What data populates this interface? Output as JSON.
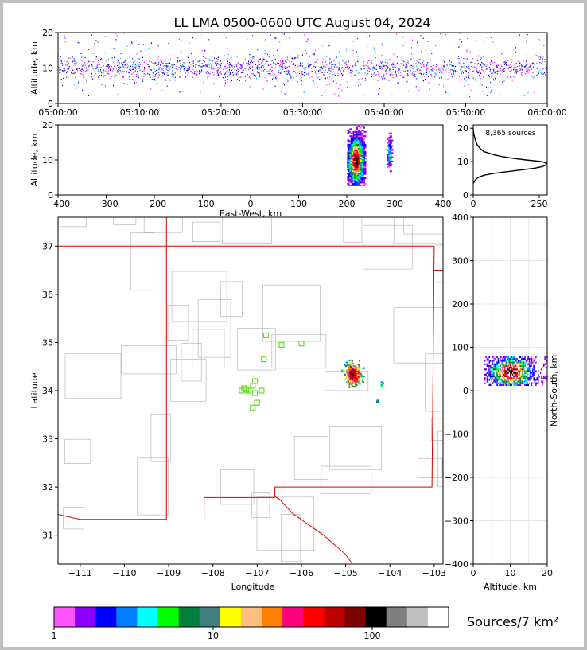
{
  "chart_data": [
    {
      "type": "scatter",
      "panel": "altitude-vs-time",
      "title": "LL LMA 0500-0600 UTC August 04, 2024",
      "xlabel": "",
      "ylabel": "Altitude, km",
      "xticks": [
        "05:00:00",
        "05:10:00",
        "05:20:00",
        "05:30:00",
        "05:40:00",
        "05:50:00",
        "06:00:00"
      ],
      "xlim_minutes": [
        0,
        60
      ],
      "ylim": [
        0,
        20
      ],
      "yticks": [
        0,
        10,
        20
      ],
      "dominant_altitude_band_km": [
        6,
        14
      ],
      "sparse_altitude_band_km": [
        2,
        20
      ]
    },
    {
      "type": "heatmap",
      "panel": "altitude-vs-east-west",
      "xlabel": "East-West, km",
      "ylabel": "Altitude, km",
      "xlim": [
        -400,
        400
      ],
      "xticks": [
        -400,
        -300,
        -200,
        -100,
        0,
        100,
        200,
        300,
        400
      ],
      "ylim": [
        0,
        20
      ],
      "yticks": [
        0,
        10,
        20
      ],
      "clusters": [
        {
          "x_center_km": 218,
          "x_width_km": 35,
          "alt_range_km": [
            3,
            20
          ],
          "peak_alt_km": 10
        },
        {
          "x_center_km": 288,
          "x_width_km": 8,
          "alt_range_km": [
            7,
            18
          ],
          "peak_alt_km": 12
        }
      ]
    },
    {
      "type": "line",
      "panel": "altitude-histogram",
      "annotation": "8,365 sources",
      "xlim": [
        0,
        280
      ],
      "xticks": [
        0,
        250
      ],
      "ylim": [
        0,
        21
      ],
      "yticks": [
        0,
        10,
        20
      ],
      "counts": [
        [
          0,
          3.5
        ],
        [
          8,
          4.5
        ],
        [
          15,
          5
        ],
        [
          25,
          5.5
        ],
        [
          45,
          6
        ],
        [
          80,
          6.5
        ],
        [
          130,
          7
        ],
        [
          180,
          7.5
        ],
        [
          230,
          8
        ],
        [
          260,
          8.5
        ],
        [
          275,
          9
        ],
        [
          278,
          9.5
        ],
        [
          260,
          10
        ],
        [
          200,
          10.5
        ],
        [
          150,
          11
        ],
        [
          110,
          11.5
        ],
        [
          80,
          12
        ],
        [
          60,
          12.5
        ],
        [
          40,
          13
        ],
        [
          25,
          14
        ],
        [
          15,
          15
        ],
        [
          10,
          16
        ],
        [
          6,
          17
        ],
        [
          3,
          18
        ],
        [
          1,
          19
        ],
        [
          0,
          20
        ]
      ]
    },
    {
      "type": "heatmap",
      "panel": "plan-view-map",
      "xlabel": "Longitude",
      "ylabel": "Latitude",
      "xlim": [
        -111.5,
        -102.8
      ],
      "xticks": [
        -111,
        -110,
        -109,
        -108,
        -107,
        -106,
        -105,
        -104,
        -103
      ],
      "ylim": [
        30.4,
        37.6
      ],
      "yticks": [
        31,
        32,
        33,
        34,
        35,
        36,
        37
      ],
      "stations": [
        {
          "lon": -107.3,
          "lat": 34.05
        },
        {
          "lon": -107.35,
          "lat": 34.0
        },
        {
          "lon": -107.2,
          "lat": 34.0
        },
        {
          "lon": -107.1,
          "lat": 34.1
        },
        {
          "lon": -107.05,
          "lat": 34.2
        },
        {
          "lon": -107.05,
          "lat": 33.95
        },
        {
          "lon": -106.9,
          "lat": 34.0
        },
        {
          "lon": -107.0,
          "lat": 33.75
        },
        {
          "lon": -107.1,
          "lat": 33.65
        },
        {
          "lon": -107.25,
          "lat": 34.02
        },
        {
          "lon": -106.85,
          "lat": 34.65
        },
        {
          "lon": -106.8,
          "lat": 35.15
        },
        {
          "lon": -106.45,
          "lat": 34.95
        },
        {
          "lon": -106.0,
          "lat": 34.98
        }
      ],
      "source_clusters": [
        {
          "lon": -104.85,
          "lat": 34.35,
          "spread_lon": 0.2,
          "spread_lat": 0.25
        },
        {
          "lon": -104.2,
          "lat": 34.15,
          "spread_lon": 0.03,
          "spread_lat": 0.05
        },
        {
          "lon": -104.3,
          "lat": 33.8,
          "spread_lon": 0.01,
          "spread_lat": 0.02
        }
      ]
    },
    {
      "type": "heatmap",
      "panel": "north-south-vs-altitude",
      "xlabel": "Altitude, km",
      "ylabel": "North-South, km",
      "xlim": [
        0,
        20
      ],
      "xticks": [
        0,
        10,
        20
      ],
      "ylim": [
        -400,
        400
      ],
      "yticks": [
        -400,
        -300,
        -200,
        -100,
        0,
        100,
        200,
        300,
        400
      ],
      "cluster": {
        "alt_range_km": [
          3,
          20
        ],
        "ns_range_km": [
          15,
          80
        ],
        "peak_alt_km": 10,
        "peak_ns_km": 45
      }
    }
  ],
  "colorbar": {
    "label": "Sources/7 km²",
    "ticks": [
      "1",
      "10",
      "100"
    ],
    "colors": [
      "#ff55ff",
      "#8b00ff",
      "#0000ff",
      "#007fff",
      "#00ffff",
      "#00ff00",
      "#007f3f",
      "#3f7f7f",
      "#ffff00",
      "#ffbf7f",
      "#ff7f00",
      "#ff007f",
      "#ff0000",
      "#bf0000",
      "#7f0000",
      "#000000",
      "#7f7f7f",
      "#bfbfbf",
      "#ffffff"
    ]
  }
}
